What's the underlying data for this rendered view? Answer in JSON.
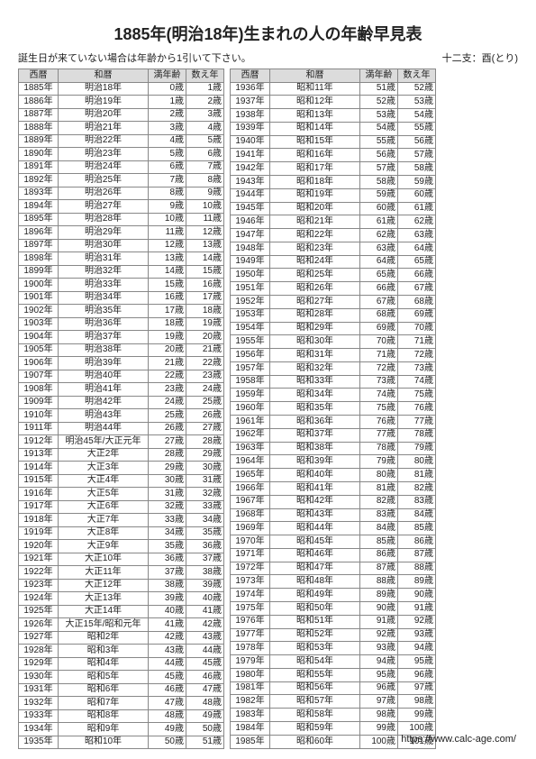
{
  "title": "1885年(明治18年)生まれの人の年齢早見表",
  "note": "誕生日が来ていない場合は年齢から1引いて下さい。",
  "zodiac": "十二支：酉(とり)",
  "footer": "https://www.calc-age.com/",
  "headers": {
    "west": "西暦",
    "jp": "和暦",
    "full": "満年齢",
    "cnt": "数え年"
  },
  "style": {
    "header_bg": "#dcdcdc",
    "border_color": "#888888",
    "text_color": "#222222",
    "background": "#ffffff",
    "title_fontsize": 18,
    "body_fontsize": 10,
    "sub_fontsize": 11,
    "col_widths": {
      "west": 44,
      "jp": 100,
      "age": 42,
      "cnt": 42
    }
  },
  "left": [
    {
      "w": "1885年",
      "j": "明治18年",
      "a": "0歳",
      "c": "1歳"
    },
    {
      "w": "1886年",
      "j": "明治19年",
      "a": "1歳",
      "c": "2歳"
    },
    {
      "w": "1887年",
      "j": "明治20年",
      "a": "2歳",
      "c": "3歳"
    },
    {
      "w": "1888年",
      "j": "明治21年",
      "a": "3歳",
      "c": "4歳"
    },
    {
      "w": "1889年",
      "j": "明治22年",
      "a": "4歳",
      "c": "5歳"
    },
    {
      "w": "1890年",
      "j": "明治23年",
      "a": "5歳",
      "c": "6歳"
    },
    {
      "w": "1891年",
      "j": "明治24年",
      "a": "6歳",
      "c": "7歳"
    },
    {
      "w": "1892年",
      "j": "明治25年",
      "a": "7歳",
      "c": "8歳"
    },
    {
      "w": "1893年",
      "j": "明治26年",
      "a": "8歳",
      "c": "9歳"
    },
    {
      "w": "1894年",
      "j": "明治27年",
      "a": "9歳",
      "c": "10歳"
    },
    {
      "w": "1895年",
      "j": "明治28年",
      "a": "10歳",
      "c": "11歳"
    },
    {
      "w": "1896年",
      "j": "明治29年",
      "a": "11歳",
      "c": "12歳"
    },
    {
      "w": "1897年",
      "j": "明治30年",
      "a": "12歳",
      "c": "13歳"
    },
    {
      "w": "1898年",
      "j": "明治31年",
      "a": "13歳",
      "c": "14歳"
    },
    {
      "w": "1899年",
      "j": "明治32年",
      "a": "14歳",
      "c": "15歳"
    },
    {
      "w": "1900年",
      "j": "明治33年",
      "a": "15歳",
      "c": "16歳"
    },
    {
      "w": "1901年",
      "j": "明治34年",
      "a": "16歳",
      "c": "17歳"
    },
    {
      "w": "1902年",
      "j": "明治35年",
      "a": "17歳",
      "c": "18歳"
    },
    {
      "w": "1903年",
      "j": "明治36年",
      "a": "18歳",
      "c": "19歳"
    },
    {
      "w": "1904年",
      "j": "明治37年",
      "a": "19歳",
      "c": "20歳"
    },
    {
      "w": "1905年",
      "j": "明治38年",
      "a": "20歳",
      "c": "21歳"
    },
    {
      "w": "1906年",
      "j": "明治39年",
      "a": "21歳",
      "c": "22歳"
    },
    {
      "w": "1907年",
      "j": "明治40年",
      "a": "22歳",
      "c": "23歳"
    },
    {
      "w": "1908年",
      "j": "明治41年",
      "a": "23歳",
      "c": "24歳"
    },
    {
      "w": "1909年",
      "j": "明治42年",
      "a": "24歳",
      "c": "25歳"
    },
    {
      "w": "1910年",
      "j": "明治43年",
      "a": "25歳",
      "c": "26歳"
    },
    {
      "w": "1911年",
      "j": "明治44年",
      "a": "26歳",
      "c": "27歳"
    },
    {
      "w": "1912年",
      "j": "明治45年/大正元年",
      "a": "27歳",
      "c": "28歳"
    },
    {
      "w": "1913年",
      "j": "大正2年",
      "a": "28歳",
      "c": "29歳"
    },
    {
      "w": "1914年",
      "j": "大正3年",
      "a": "29歳",
      "c": "30歳"
    },
    {
      "w": "1915年",
      "j": "大正4年",
      "a": "30歳",
      "c": "31歳"
    },
    {
      "w": "1916年",
      "j": "大正5年",
      "a": "31歳",
      "c": "32歳"
    },
    {
      "w": "1917年",
      "j": "大正6年",
      "a": "32歳",
      "c": "33歳"
    },
    {
      "w": "1918年",
      "j": "大正7年",
      "a": "33歳",
      "c": "34歳"
    },
    {
      "w": "1919年",
      "j": "大正8年",
      "a": "34歳",
      "c": "35歳"
    },
    {
      "w": "1920年",
      "j": "大正9年",
      "a": "35歳",
      "c": "36歳"
    },
    {
      "w": "1921年",
      "j": "大正10年",
      "a": "36歳",
      "c": "37歳"
    },
    {
      "w": "1922年",
      "j": "大正11年",
      "a": "37歳",
      "c": "38歳"
    },
    {
      "w": "1923年",
      "j": "大正12年",
      "a": "38歳",
      "c": "39歳"
    },
    {
      "w": "1924年",
      "j": "大正13年",
      "a": "39歳",
      "c": "40歳"
    },
    {
      "w": "1925年",
      "j": "大正14年",
      "a": "40歳",
      "c": "41歳"
    },
    {
      "w": "1926年",
      "j": "大正15年/昭和元年",
      "a": "41歳",
      "c": "42歳"
    },
    {
      "w": "1927年",
      "j": "昭和2年",
      "a": "42歳",
      "c": "43歳"
    },
    {
      "w": "1928年",
      "j": "昭和3年",
      "a": "43歳",
      "c": "44歳"
    },
    {
      "w": "1929年",
      "j": "昭和4年",
      "a": "44歳",
      "c": "45歳"
    },
    {
      "w": "1930年",
      "j": "昭和5年",
      "a": "45歳",
      "c": "46歳"
    },
    {
      "w": "1931年",
      "j": "昭和6年",
      "a": "46歳",
      "c": "47歳"
    },
    {
      "w": "1932年",
      "j": "昭和7年",
      "a": "47歳",
      "c": "48歳"
    },
    {
      "w": "1933年",
      "j": "昭和8年",
      "a": "48歳",
      "c": "49歳"
    },
    {
      "w": "1934年",
      "j": "昭和9年",
      "a": "49歳",
      "c": "50歳"
    },
    {
      "w": "1935年",
      "j": "昭和10年",
      "a": "50歳",
      "c": "51歳"
    }
  ],
  "right": [
    {
      "w": "1936年",
      "j": "昭和11年",
      "a": "51歳",
      "c": "52歳"
    },
    {
      "w": "1937年",
      "j": "昭和12年",
      "a": "52歳",
      "c": "53歳"
    },
    {
      "w": "1938年",
      "j": "昭和13年",
      "a": "53歳",
      "c": "54歳"
    },
    {
      "w": "1939年",
      "j": "昭和14年",
      "a": "54歳",
      "c": "55歳"
    },
    {
      "w": "1940年",
      "j": "昭和15年",
      "a": "55歳",
      "c": "56歳"
    },
    {
      "w": "1941年",
      "j": "昭和16年",
      "a": "56歳",
      "c": "57歳"
    },
    {
      "w": "1942年",
      "j": "昭和17年",
      "a": "57歳",
      "c": "58歳"
    },
    {
      "w": "1943年",
      "j": "昭和18年",
      "a": "58歳",
      "c": "59歳"
    },
    {
      "w": "1944年",
      "j": "昭和19年",
      "a": "59歳",
      "c": "60歳"
    },
    {
      "w": "1945年",
      "j": "昭和20年",
      "a": "60歳",
      "c": "61歳"
    },
    {
      "w": "1946年",
      "j": "昭和21年",
      "a": "61歳",
      "c": "62歳"
    },
    {
      "w": "1947年",
      "j": "昭和22年",
      "a": "62歳",
      "c": "63歳"
    },
    {
      "w": "1948年",
      "j": "昭和23年",
      "a": "63歳",
      "c": "64歳"
    },
    {
      "w": "1949年",
      "j": "昭和24年",
      "a": "64歳",
      "c": "65歳"
    },
    {
      "w": "1950年",
      "j": "昭和25年",
      "a": "65歳",
      "c": "66歳"
    },
    {
      "w": "1951年",
      "j": "昭和26年",
      "a": "66歳",
      "c": "67歳"
    },
    {
      "w": "1952年",
      "j": "昭和27年",
      "a": "67歳",
      "c": "68歳"
    },
    {
      "w": "1953年",
      "j": "昭和28年",
      "a": "68歳",
      "c": "69歳"
    },
    {
      "w": "1954年",
      "j": "昭和29年",
      "a": "69歳",
      "c": "70歳"
    },
    {
      "w": "1955年",
      "j": "昭和30年",
      "a": "70歳",
      "c": "71歳"
    },
    {
      "w": "1956年",
      "j": "昭和31年",
      "a": "71歳",
      "c": "72歳"
    },
    {
      "w": "1957年",
      "j": "昭和32年",
      "a": "72歳",
      "c": "73歳"
    },
    {
      "w": "1958年",
      "j": "昭和33年",
      "a": "73歳",
      "c": "74歳"
    },
    {
      "w": "1959年",
      "j": "昭和34年",
      "a": "74歳",
      "c": "75歳"
    },
    {
      "w": "1960年",
      "j": "昭和35年",
      "a": "75歳",
      "c": "76歳"
    },
    {
      "w": "1961年",
      "j": "昭和36年",
      "a": "76歳",
      "c": "77歳"
    },
    {
      "w": "1962年",
      "j": "昭和37年",
      "a": "77歳",
      "c": "78歳"
    },
    {
      "w": "1963年",
      "j": "昭和38年",
      "a": "78歳",
      "c": "79歳"
    },
    {
      "w": "1964年",
      "j": "昭和39年",
      "a": "79歳",
      "c": "80歳"
    },
    {
      "w": "1965年",
      "j": "昭和40年",
      "a": "80歳",
      "c": "81歳"
    },
    {
      "w": "1966年",
      "j": "昭和41年",
      "a": "81歳",
      "c": "82歳"
    },
    {
      "w": "1967年",
      "j": "昭和42年",
      "a": "82歳",
      "c": "83歳"
    },
    {
      "w": "1968年",
      "j": "昭和43年",
      "a": "83歳",
      "c": "84歳"
    },
    {
      "w": "1969年",
      "j": "昭和44年",
      "a": "84歳",
      "c": "85歳"
    },
    {
      "w": "1970年",
      "j": "昭和45年",
      "a": "85歳",
      "c": "86歳"
    },
    {
      "w": "1971年",
      "j": "昭和46年",
      "a": "86歳",
      "c": "87歳"
    },
    {
      "w": "1972年",
      "j": "昭和47年",
      "a": "87歳",
      "c": "88歳"
    },
    {
      "w": "1973年",
      "j": "昭和48年",
      "a": "88歳",
      "c": "89歳"
    },
    {
      "w": "1974年",
      "j": "昭和49年",
      "a": "89歳",
      "c": "90歳"
    },
    {
      "w": "1975年",
      "j": "昭和50年",
      "a": "90歳",
      "c": "91歳"
    },
    {
      "w": "1976年",
      "j": "昭和51年",
      "a": "91歳",
      "c": "92歳"
    },
    {
      "w": "1977年",
      "j": "昭和52年",
      "a": "92歳",
      "c": "93歳"
    },
    {
      "w": "1978年",
      "j": "昭和53年",
      "a": "93歳",
      "c": "94歳"
    },
    {
      "w": "1979年",
      "j": "昭和54年",
      "a": "94歳",
      "c": "95歳"
    },
    {
      "w": "1980年",
      "j": "昭和55年",
      "a": "95歳",
      "c": "96歳"
    },
    {
      "w": "1981年",
      "j": "昭和56年",
      "a": "96歳",
      "c": "97歳"
    },
    {
      "w": "1982年",
      "j": "昭和57年",
      "a": "97歳",
      "c": "98歳"
    },
    {
      "w": "1983年",
      "j": "昭和58年",
      "a": "98歳",
      "c": "99歳"
    },
    {
      "w": "1984年",
      "j": "昭和59年",
      "a": "99歳",
      "c": "100歳"
    },
    {
      "w": "1985年",
      "j": "昭和60年",
      "a": "100歳",
      "c": "101歳"
    }
  ]
}
